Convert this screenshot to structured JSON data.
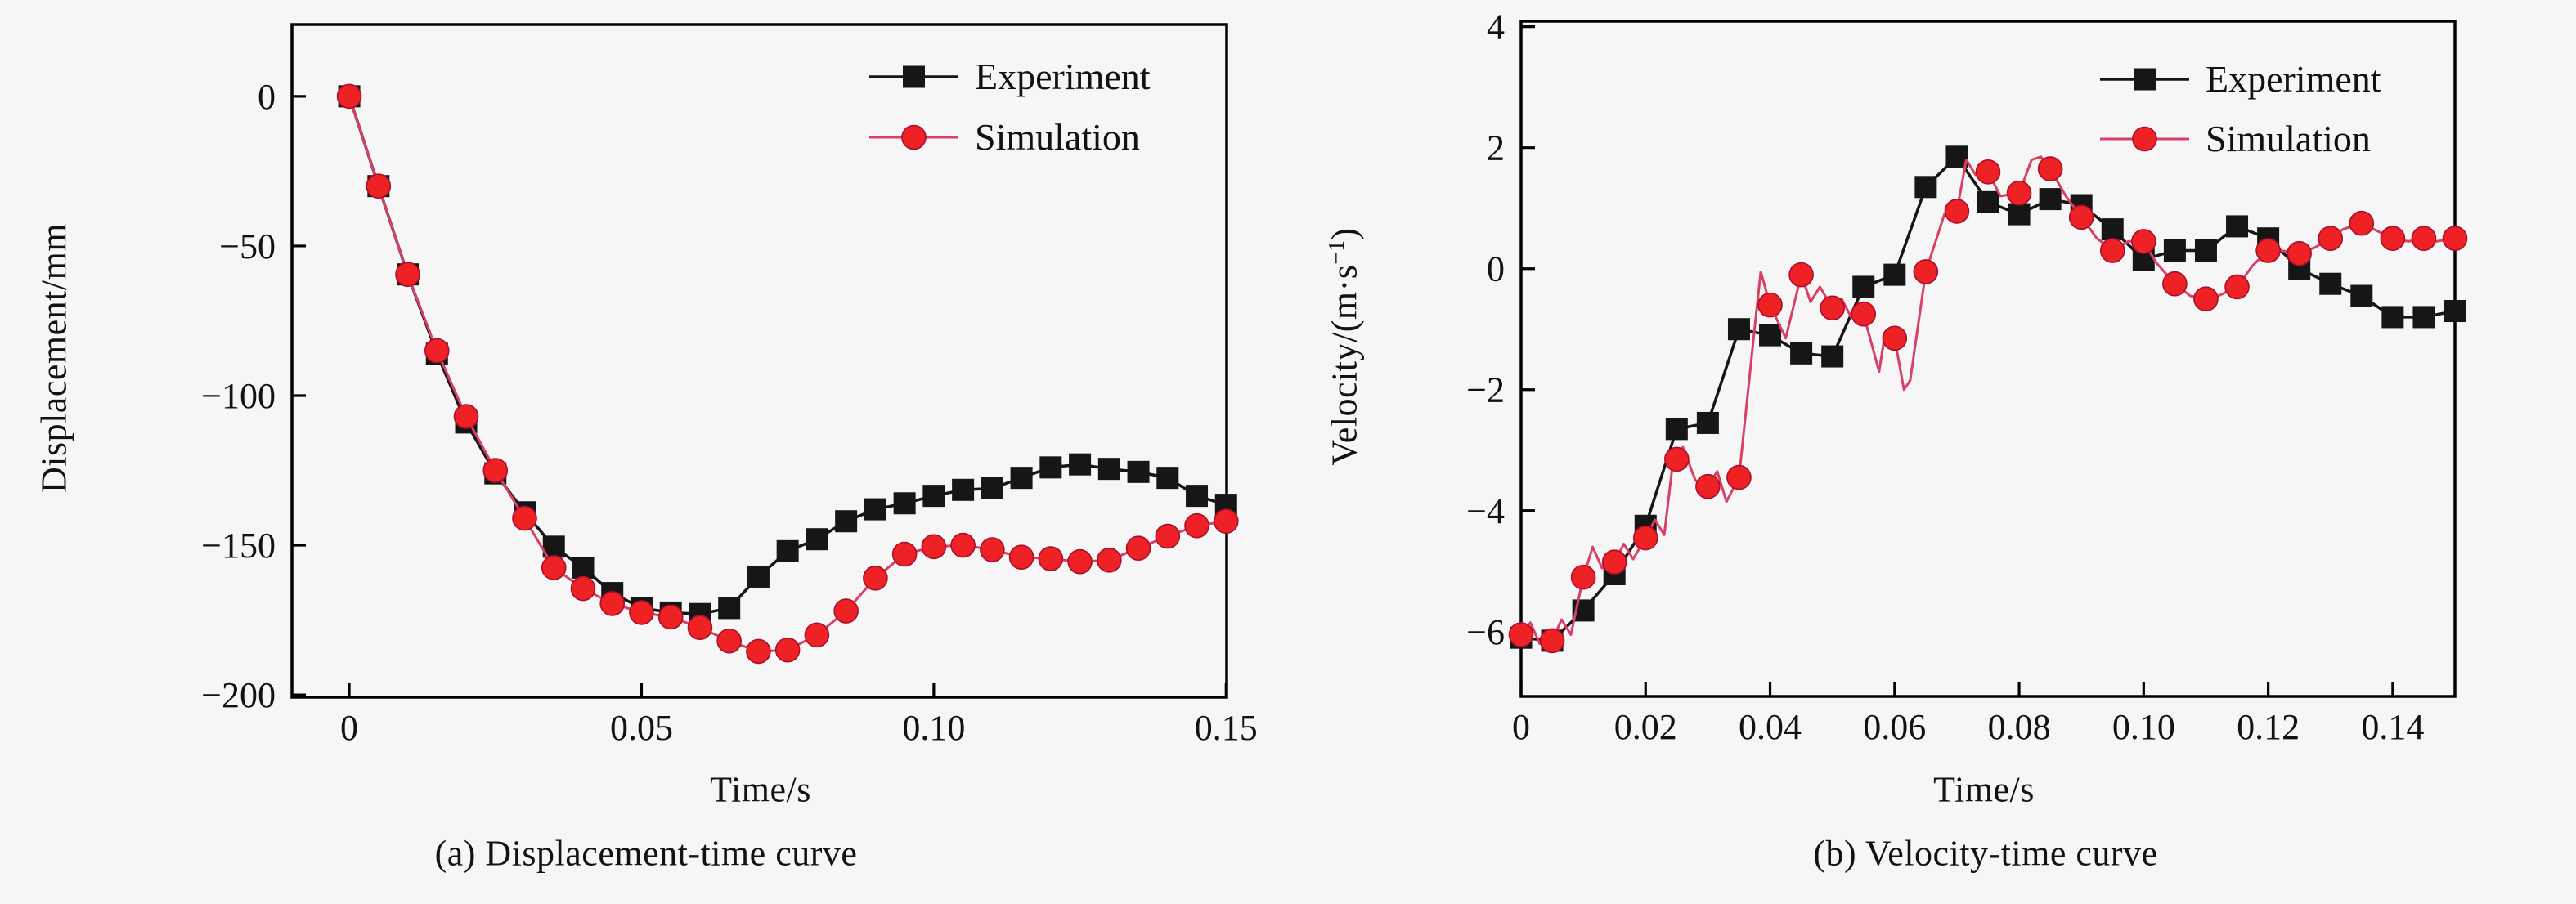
{
  "figure": {
    "background": "#f7f6f6",
    "frame_color": "#000000"
  },
  "legend": {
    "experiment_label": "Experiment",
    "simulation_label": "Simulation"
  },
  "colors": {
    "experiment": "#161616",
    "simulation_line": "#d94066",
    "simulation_marker": "#ee2125",
    "simulation_marker_edge": "#a80f2d"
  },
  "chart_data": [
    {
      "id": "displacement-time",
      "type": "line",
      "caption": "(a) Displacement-time curve",
      "xlabel": "Time/s",
      "ylabel": "Displacement/mm",
      "xlim": [
        -0.0098,
        0.1501
      ],
      "ylim": [
        -200.8,
        24
      ],
      "grid": false,
      "legend_position": "top-right-inside",
      "x_ticks": [
        {
          "v": 0,
          "label": "0"
        },
        {
          "v": 0.05,
          "label": "0.05"
        },
        {
          "v": 0.1,
          "label": "0.10"
        },
        {
          "v": 0.15,
          "label": "0.15"
        }
      ],
      "y_ticks": [
        {
          "v": 0,
          "label": "0"
        },
        {
          "v": -50,
          "label": "−50"
        },
        {
          "v": -100,
          "label": "−100"
        },
        {
          "v": -150,
          "label": "−150"
        },
        {
          "v": -200,
          "label": "−200"
        }
      ],
      "series": [
        {
          "name": "Experiment",
          "marker": "square",
          "x": [
            0,
            0.005,
            0.01,
            0.015,
            0.02,
            0.025,
            0.03,
            0.035,
            0.04,
            0.045,
            0.05,
            0.055,
            0.06,
            0.065,
            0.07,
            0.075,
            0.08,
            0.085,
            0.09,
            0.095,
            0.1,
            0.105,
            0.11,
            0.115,
            0.12,
            0.125,
            0.13,
            0.135,
            0.14,
            0.145,
            0.15
          ],
          "y": [
            0,
            -30,
            -59.5,
            -86,
            -109,
            -126,
            -139,
            -150.5,
            -157.5,
            -166,
            -171,
            -172.5,
            -173,
            -171,
            -160.5,
            -152,
            -148,
            -142,
            -138,
            -136,
            -133.5,
            -131.5,
            -131,
            -127.5,
            -124,
            -123,
            -124.5,
            -125.5,
            -127.5,
            -133.5,
            -136.5
          ]
        },
        {
          "name": "Simulation",
          "marker": "circle",
          "x": [
            0,
            0.005,
            0.01,
            0.015,
            0.02,
            0.025,
            0.03,
            0.035,
            0.04,
            0.045,
            0.05,
            0.055,
            0.06,
            0.065,
            0.07,
            0.075,
            0.08,
            0.085,
            0.09,
            0.095,
            0.1,
            0.105,
            0.11,
            0.115,
            0.12,
            0.125,
            0.13,
            0.135,
            0.14,
            0.145,
            0.15
          ],
          "y": [
            0,
            -30,
            -59.5,
            -85,
            -107,
            -125,
            -141,
            -157.5,
            -164.5,
            -169.5,
            -172.5,
            -174,
            -177.5,
            -182,
            -185.5,
            -185,
            -180,
            -172,
            -161,
            -153,
            -150.5,
            -150,
            -151.5,
            -154,
            -154.5,
            -155.5,
            -155,
            -151,
            -147,
            -143.5,
            -142
          ]
        }
      ]
    },
    {
      "id": "velocity-time",
      "type": "line",
      "caption": "(b) Velocity-time curve",
      "xlabel": "Time/s",
      "ylabel_base": "Velocity/(m·s",
      "ylabel_sup": "−1",
      "ylabel_end": ")",
      "xlim": [
        0,
        0.15
      ],
      "ylim": [
        -7.07,
        4.09
      ],
      "grid": false,
      "legend_position": "top-right-inside",
      "x_ticks": [
        {
          "v": 0,
          "label": "0"
        },
        {
          "v": 0.02,
          "label": "0.02"
        },
        {
          "v": 0.04,
          "label": "0.04"
        },
        {
          "v": 0.06,
          "label": "0.06"
        },
        {
          "v": 0.08,
          "label": "0.08"
        },
        {
          "v": 0.1,
          "label": "0.10"
        },
        {
          "v": 0.12,
          "label": "0.12"
        },
        {
          "v": 0.14,
          "label": "0.14"
        }
      ],
      "y_ticks": [
        {
          "v": 4,
          "label": "4"
        },
        {
          "v": 2,
          "label": "2"
        },
        {
          "v": 0,
          "label": "0"
        },
        {
          "v": -2,
          "label": "−2"
        },
        {
          "v": -4,
          "label": "−4"
        },
        {
          "v": -6,
          "label": "−6"
        }
      ],
      "series": [
        {
          "name": "Experiment",
          "marker": "square",
          "x": [
            0,
            0.005,
            0.01,
            0.015,
            0.02,
            0.025,
            0.03,
            0.035,
            0.04,
            0.045,
            0.05,
            0.055,
            0.06,
            0.065,
            0.07,
            0.075,
            0.08,
            0.085,
            0.09,
            0.095,
            0.1,
            0.105,
            0.11,
            0.115,
            0.12,
            0.125,
            0.13,
            0.135,
            0.14,
            0.145,
            0.15
          ],
          "y": [
            -6.1,
            -6.15,
            -5.65,
            -5.05,
            -4.25,
            -2.65,
            -2.55,
            -1.0,
            -1.1,
            -1.4,
            -1.45,
            -0.3,
            -0.1,
            1.35,
            1.85,
            1.1,
            0.9,
            1.15,
            1.05,
            0.65,
            0.15,
            0.3,
            0.3,
            0.7,
            0.5,
            0.0,
            -0.25,
            -0.45,
            -0.8,
            -0.8,
            -0.7
          ]
        },
        {
          "name": "Simulation",
          "marker": "circle",
          "x": [
            0,
            0.005,
            0.01,
            0.015,
            0.02,
            0.025,
            0.03,
            0.035,
            0.04,
            0.045,
            0.05,
            0.055,
            0.06,
            0.065,
            0.07,
            0.075,
            0.08,
            0.085,
            0.09,
            0.095,
            0.1,
            0.105,
            0.11,
            0.115,
            0.12,
            0.125,
            0.13,
            0.135,
            0.14,
            0.145,
            0.15
          ],
          "y": [
            -6.05,
            -6.15,
            -5.1,
            -4.85,
            -4.45,
            -3.15,
            -3.6,
            -3.45,
            -0.6,
            -0.1,
            -0.65,
            -0.75,
            -1.15,
            -0.05,
            0.95,
            1.6,
            1.25,
            1.65,
            0.85,
            0.3,
            0.45,
            -0.25,
            -0.5,
            -0.3,
            0.3,
            0.25,
            0.5,
            0.75,
            0.5,
            0.5,
            0.5
          ],
          "line_x": [
            0,
            0.0015,
            0.003,
            0.005,
            0.0065,
            0.008,
            0.01,
            0.0115,
            0.013,
            0.015,
            0.0165,
            0.018,
            0.02,
            0.0215,
            0.023,
            0.0245,
            0.025,
            0.026,
            0.028,
            0.03,
            0.0315,
            0.033,
            0.035,
            0.0375,
            0.0385,
            0.04,
            0.0425,
            0.045,
            0.0465,
            0.048,
            0.05,
            0.0515,
            0.053,
            0.055,
            0.0575,
            0.0585,
            0.06,
            0.0615,
            0.0625,
            0.065,
            0.068,
            0.0695,
            0.07,
            0.0715,
            0.073,
            0.075,
            0.077,
            0.08,
            0.082,
            0.0835,
            0.085,
            0.0875,
            0.09,
            0.0925,
            0.095,
            0.0975,
            0.1,
            0.102,
            0.105,
            0.1075,
            0.11,
            0.112,
            0.115,
            0.1175,
            0.12,
            0.122,
            0.125,
            0.1275,
            0.13,
            0.132,
            0.135,
            0.137,
            0.14,
            0.1425,
            0.145,
            0.147,
            0.15
          ],
          "line_y": [
            -6.05,
            -5.85,
            -6.2,
            -6.15,
            -5.8,
            -6.05,
            -5.1,
            -4.6,
            -4.95,
            -4.85,
            -4.55,
            -4.8,
            -4.45,
            -4.15,
            -4.4,
            -3.1,
            -3.15,
            -2.95,
            -3.5,
            -3.6,
            -3.35,
            -3.85,
            -3.45,
            -1.0,
            -0.05,
            -0.6,
            -1.15,
            -0.1,
            -0.55,
            -0.3,
            -0.65,
            -0.5,
            -0.8,
            -0.75,
            -1.7,
            -1.05,
            -1.15,
            -2.0,
            -1.85,
            -0.05,
            0.9,
            1.05,
            0.95,
            1.8,
            1.55,
            1.6,
            1.2,
            1.25,
            1.8,
            1.85,
            1.65,
            1.2,
            0.85,
            0.5,
            0.3,
            0.45,
            0.45,
            0.1,
            -0.25,
            -0.45,
            -0.5,
            -0.45,
            -0.3,
            0.05,
            0.3,
            0.3,
            0.25,
            0.35,
            0.5,
            0.65,
            0.75,
            0.65,
            0.5,
            0.45,
            0.5,
            0.45,
            0.5
          ]
        }
      ]
    }
  ]
}
